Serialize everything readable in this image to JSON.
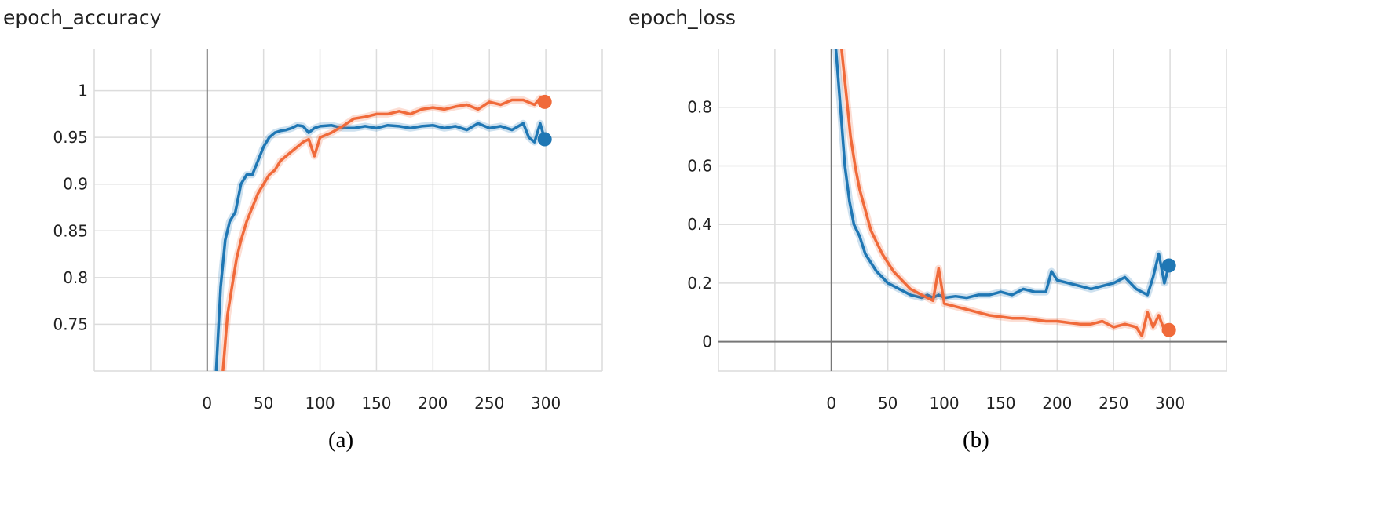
{
  "chart_data": [
    {
      "type": "line",
      "title": "epoch_accuracy",
      "caption": "(a)",
      "xlabel": "",
      "ylabel": "",
      "xlim": [
        -100,
        350
      ],
      "ylim": [
        0.7,
        1.045
      ],
      "x_ticks": [
        0,
        50,
        100,
        150,
        200,
        250,
        300
      ],
      "y_ticks": [
        0.75,
        0.8,
        0.85,
        0.9,
        0.95,
        1
      ],
      "y_tick_labels": [
        "0.75",
        "0.8",
        "0.85",
        "0.9",
        "0.95",
        "1"
      ],
      "grid": true,
      "legend": "none",
      "series": [
        {
          "color": "#1f77b4",
          "x": [
            8,
            12,
            16,
            20,
            25,
            30,
            35,
            40,
            45,
            50,
            55,
            60,
            65,
            70,
            75,
            80,
            85,
            90,
            95,
            100,
            110,
            120,
            130,
            140,
            150,
            160,
            170,
            180,
            190,
            200,
            210,
            220,
            230,
            240,
            250,
            260,
            270,
            280,
            285,
            290,
            295,
            299
          ],
          "values": [
            0.7,
            0.79,
            0.84,
            0.86,
            0.87,
            0.9,
            0.91,
            0.91,
            0.925,
            0.94,
            0.95,
            0.955,
            0.957,
            0.958,
            0.96,
            0.963,
            0.962,
            0.955,
            0.96,
            0.962,
            0.963,
            0.96,
            0.96,
            0.962,
            0.96,
            0.963,
            0.962,
            0.96,
            0.962,
            0.963,
            0.96,
            0.962,
            0.958,
            0.965,
            0.96,
            0.962,
            0.958,
            0.965,
            0.95,
            0.945,
            0.965,
            0.948
          ]
        },
        {
          "color": "#f06a3a",
          "x": [
            14,
            18,
            22,
            26,
            30,
            35,
            40,
            45,
            50,
            55,
            60,
            65,
            70,
            75,
            80,
            85,
            90,
            95,
            100,
            110,
            120,
            130,
            140,
            150,
            160,
            170,
            180,
            190,
            200,
            210,
            220,
            230,
            240,
            250,
            260,
            270,
            280,
            290,
            295,
            299
          ],
          "values": [
            0.7,
            0.76,
            0.79,
            0.82,
            0.84,
            0.86,
            0.875,
            0.89,
            0.9,
            0.91,
            0.915,
            0.925,
            0.93,
            0.935,
            0.94,
            0.945,
            0.948,
            0.93,
            0.95,
            0.955,
            0.962,
            0.97,
            0.972,
            0.975,
            0.975,
            0.978,
            0.975,
            0.98,
            0.982,
            0.98,
            0.983,
            0.985,
            0.98,
            0.988,
            0.985,
            0.99,
            0.99,
            0.985,
            0.992,
            0.988
          ]
        }
      ]
    },
    {
      "type": "line",
      "title": "epoch_loss",
      "caption": "(b)",
      "xlabel": "",
      "ylabel": "",
      "xlim": [
        -100,
        350
      ],
      "ylim": [
        -0.1,
        1.0
      ],
      "x_ticks": [
        0,
        50,
        100,
        150,
        200,
        250,
        300
      ],
      "y_ticks": [
        0,
        0.2,
        0.4,
        0.6,
        0.8
      ],
      "y_tick_labels": [
        "0",
        "0.2",
        "0.4",
        "0.6",
        "0.8"
      ],
      "grid": true,
      "legend": "none",
      "series": [
        {
          "color": "#1f77b4",
          "x": [
            4,
            8,
            12,
            16,
            20,
            25,
            30,
            35,
            40,
            45,
            50,
            55,
            60,
            65,
            70,
            75,
            80,
            85,
            90,
            95,
            100,
            110,
            120,
            130,
            140,
            150,
            160,
            170,
            180,
            190,
            195,
            200,
            210,
            220,
            230,
            240,
            250,
            260,
            270,
            280,
            285,
            290,
            295,
            299
          ],
          "values": [
            1.0,
            0.8,
            0.6,
            0.48,
            0.4,
            0.36,
            0.3,
            0.27,
            0.24,
            0.22,
            0.2,
            0.19,
            0.18,
            0.17,
            0.16,
            0.155,
            0.15,
            0.16,
            0.15,
            0.16,
            0.15,
            0.155,
            0.15,
            0.16,
            0.16,
            0.17,
            0.16,
            0.18,
            0.17,
            0.17,
            0.24,
            0.21,
            0.2,
            0.19,
            0.18,
            0.19,
            0.2,
            0.22,
            0.18,
            0.16,
            0.22,
            0.3,
            0.2,
            0.26
          ]
        },
        {
          "color": "#f06a3a",
          "x": [
            9,
            13,
            17,
            21,
            25,
            30,
            35,
            40,
            45,
            50,
            55,
            60,
            65,
            70,
            75,
            80,
            85,
            90,
            95,
            100,
            110,
            120,
            130,
            140,
            150,
            160,
            170,
            180,
            190,
            200,
            210,
            220,
            230,
            240,
            250,
            260,
            270,
            275,
            280,
            285,
            290,
            295,
            299
          ],
          "values": [
            1.0,
            0.85,
            0.7,
            0.6,
            0.52,
            0.45,
            0.38,
            0.34,
            0.3,
            0.27,
            0.24,
            0.22,
            0.2,
            0.18,
            0.17,
            0.16,
            0.15,
            0.14,
            0.25,
            0.13,
            0.12,
            0.11,
            0.1,
            0.09,
            0.085,
            0.08,
            0.08,
            0.075,
            0.07,
            0.07,
            0.065,
            0.06,
            0.06,
            0.07,
            0.05,
            0.06,
            0.05,
            0.02,
            0.1,
            0.05,
            0.09,
            0.04,
            0.04
          ]
        }
      ]
    }
  ]
}
